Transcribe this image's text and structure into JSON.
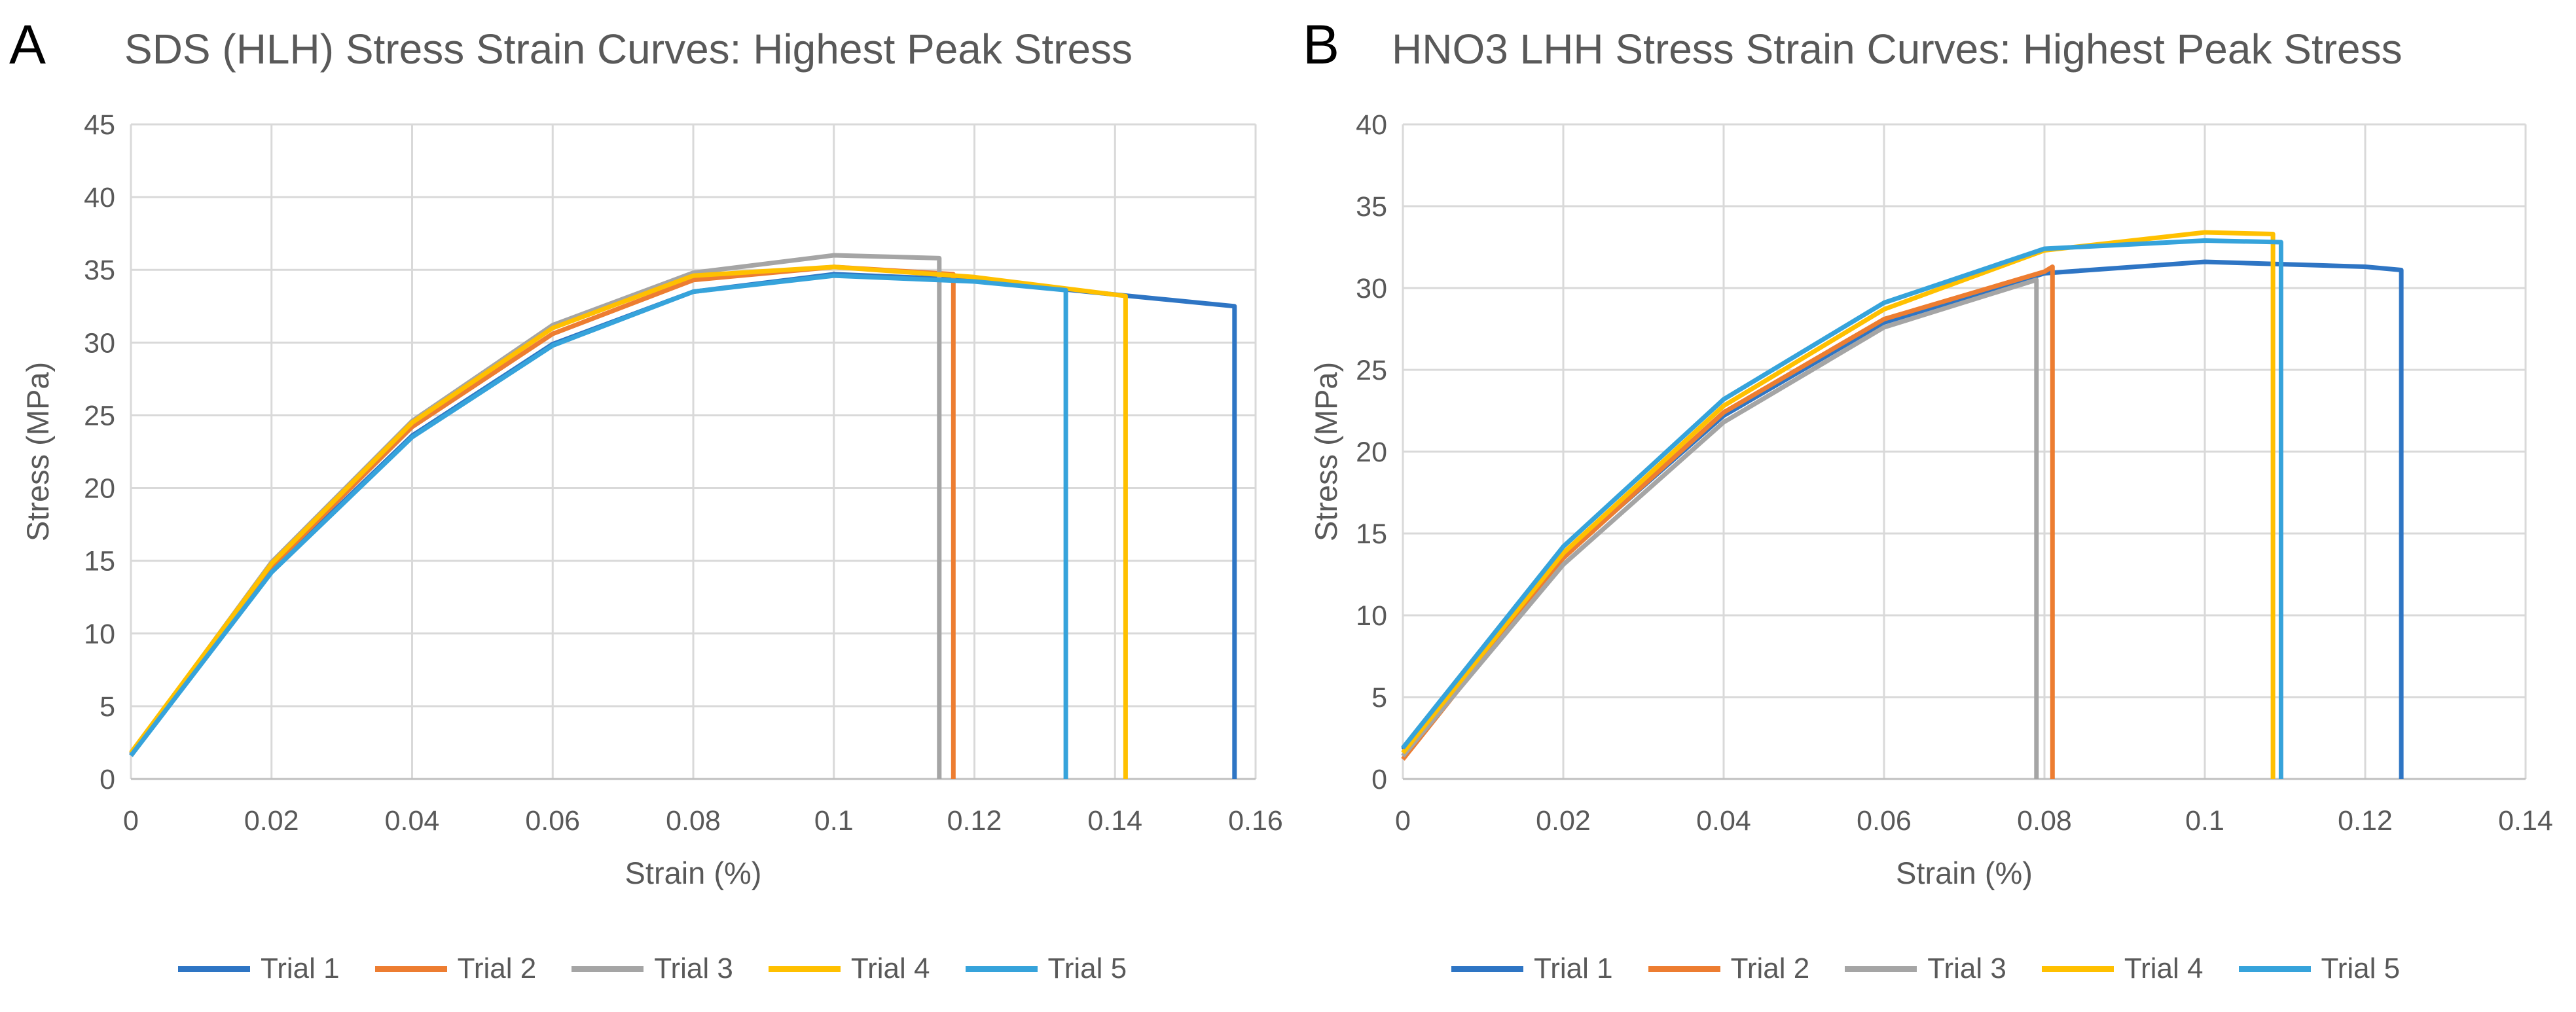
{
  "chart_data": [
    {
      "panel_label": "A",
      "type": "line",
      "title": "SDS (HLH) Stress Strain Curves: Highest Peak Stress",
      "xlabel": "Strain (%)",
      "ylabel": "Stress (MPa)",
      "xlim": [
        0,
        0.16
      ],
      "ylim": [
        0,
        45
      ],
      "xticks": [
        0,
        0.02,
        0.04,
        0.06,
        0.08,
        0.1,
        0.12,
        0.14,
        0.16
      ],
      "xtick_labels": [
        "0",
        "0.02",
        "0.04",
        "0.06",
        "0.08",
        "0.1",
        "0.12",
        "0.14",
        "0.16"
      ],
      "yticks": [
        0,
        5,
        10,
        15,
        20,
        25,
        30,
        35,
        40,
        45
      ],
      "ytick_labels": [
        "0",
        "5",
        "10",
        "15",
        "20",
        "25",
        "30",
        "35",
        "40",
        "45"
      ],
      "grid": true,
      "legend_position": "bottom",
      "series": [
        {
          "name": "Trial 1",
          "color": "#2E75C4",
          "x": [
            0,
            0.02,
            0.04,
            0.06,
            0.08,
            0.1,
            0.12,
            0.14,
            0.157,
            0.157
          ],
          "y": [
            1.7,
            14.3,
            23.6,
            29.9,
            33.5,
            34.7,
            34.3,
            33.3,
            32.5,
            0
          ]
        },
        {
          "name": "Trial 2",
          "color": "#ED7D31",
          "x": [
            0,
            0.02,
            0.04,
            0.06,
            0.08,
            0.1,
            0.117,
            0.117
          ],
          "y": [
            1.6,
            14.6,
            24.2,
            30.6,
            34.3,
            35.2,
            34.7,
            0
          ]
        },
        {
          "name": "Trial 3",
          "color": "#A5A5A5",
          "x": [
            0,
            0.02,
            0.04,
            0.06,
            0.08,
            0.1,
            0.115,
            0.115
          ],
          "y": [
            1.7,
            14.9,
            24.6,
            31.2,
            34.8,
            36.0,
            35.8,
            0
          ]
        },
        {
          "name": "Trial 4",
          "color": "#FFC000",
          "x": [
            0,
            0.02,
            0.04,
            0.06,
            0.08,
            0.1,
            0.12,
            0.1415,
            0.1415
          ],
          "y": [
            1.8,
            14.8,
            24.5,
            31.0,
            34.6,
            35.2,
            34.5,
            33.2,
            0
          ]
        },
        {
          "name": "Trial 5",
          "color": "#36A3DB",
          "x": [
            0,
            0.02,
            0.04,
            0.06,
            0.08,
            0.1,
            0.12,
            0.133,
            0.133
          ],
          "y": [
            1.6,
            14.2,
            23.5,
            29.8,
            33.5,
            34.6,
            34.2,
            33.6,
            0
          ]
        }
      ]
    },
    {
      "panel_label": "B",
      "type": "line",
      "title": "HNO3 LHH Stress Strain Curves: Highest Peak Stress",
      "xlabel": "Strain (%)",
      "ylabel": "Stress (MPa)",
      "xlim": [
        0,
        0.14
      ],
      "ylim": [
        0,
        40
      ],
      "xticks": [
        0,
        0.02,
        0.04,
        0.06,
        0.08,
        0.1,
        0.12,
        0.14
      ],
      "xtick_labels": [
        "0",
        "0.02",
        "0.04",
        "0.06",
        "0.08",
        "0.1",
        "0.12",
        "0.14"
      ],
      "yticks": [
        0,
        5,
        10,
        15,
        20,
        25,
        30,
        35,
        40
      ],
      "ytick_labels": [
        "0",
        "5",
        "10",
        "15",
        "20",
        "25",
        "30",
        "35",
        "40"
      ],
      "grid": true,
      "legend_position": "bottom",
      "series": [
        {
          "name": "Trial 1",
          "color": "#2E75C4",
          "x": [
            0,
            0.02,
            0.04,
            0.06,
            0.08,
            0.1,
            0.12,
            0.1245,
            0.1245
          ],
          "y": [
            1.8,
            13.6,
            22.2,
            27.9,
            30.9,
            31.6,
            31.3,
            31.1,
            0
          ]
        },
        {
          "name": "Trial 2",
          "color": "#ED7D31",
          "x": [
            0,
            0.02,
            0.04,
            0.06,
            0.08,
            0.081,
            0.081
          ],
          "y": [
            1.2,
            13.5,
            22.4,
            28.1,
            31.0,
            31.3,
            0
          ]
        },
        {
          "name": "Trial 3",
          "color": "#A5A5A5",
          "x": [
            0,
            0.02,
            0.04,
            0.06,
            0.079,
            0.079
          ],
          "y": [
            1.4,
            13.1,
            21.8,
            27.6,
            30.5,
            0
          ]
        },
        {
          "name": "Trial 4",
          "color": "#FFC000",
          "x": [
            0,
            0.02,
            0.04,
            0.06,
            0.08,
            0.1,
            0.1085,
            0.1085
          ],
          "y": [
            1.6,
            13.8,
            22.8,
            28.7,
            32.3,
            33.4,
            33.3,
            0
          ]
        },
        {
          "name": "Trial 5",
          "color": "#36A3DB",
          "x": [
            0,
            0.02,
            0.04,
            0.06,
            0.08,
            0.1,
            0.1095,
            0.1095
          ],
          "y": [
            1.9,
            14.2,
            23.2,
            29.1,
            32.4,
            32.9,
            32.8,
            0
          ]
        }
      ]
    }
  ]
}
